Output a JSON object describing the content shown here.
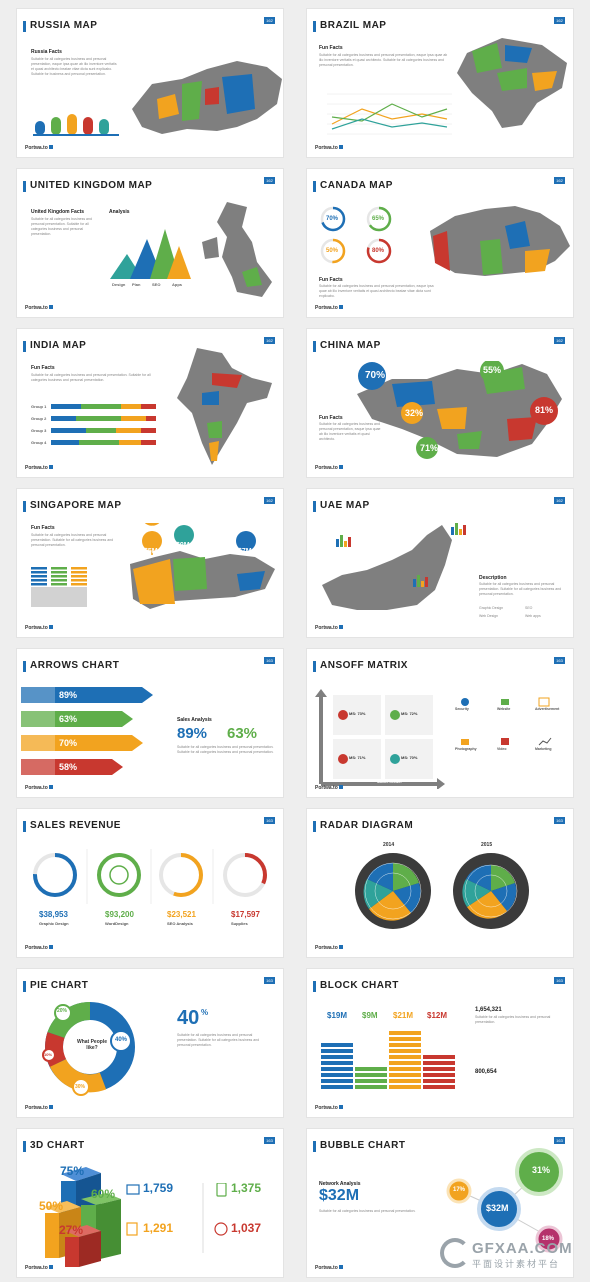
{
  "brand": "Portwa.to",
  "slides": [
    {
      "title": "RUSSIA MAP",
      "num": "162",
      "sub": "Russia Facts",
      "para": "Suitable for all categories business and personal presentation, eaque ipsa quae ab illo inventore veritatis et quasi architecto beatae vitae dicta sunt explicabo. Suitable for business and personal presentation."
    },
    {
      "title": "BRAZIL MAP",
      "num": "162",
      "sub": "Fun Facts",
      "para": "Suitable for all categories business and personal presentation, eaque ipsa quae ab illo inventore veritatis et quasi architecto. Suitable for all categories business and personal presentation."
    },
    {
      "title": "UNITED KINGDOM MAP",
      "num": "162",
      "sub": "United Kingdom Facts",
      "sub2": "Analysis",
      "para": "Suitable for all categories business and personal presentation. Suitable for all categories business and personal presentation.",
      "labels": [
        "Design",
        "Plan",
        "SEO",
        "Apps"
      ]
    },
    {
      "title": "CANADA MAP",
      "num": "162",
      "sub": "Fun Facts",
      "para": "Suitable for all categories business and personal presentation, eaque ipsa quae ab illo inventore veritatis et quasi architecto beatae vitae dicta sunt explicabo.",
      "rings": [
        "70%",
        "65%",
        "50%",
        "80%"
      ]
    },
    {
      "title": "INDIA MAP",
      "num": "162",
      "sub": "Fun Facts",
      "para": "Suitable for all categories business and personal presentation. Suitable for all categories business and personal presentation.",
      "groups": [
        "Group 1",
        "Group 2",
        "Group 3",
        "Group 4"
      ]
    },
    {
      "title": "CHINA MAP",
      "num": "162",
      "sub": "Fun Facts",
      "para": "Suitable for all categories business and personal presentation, eaque ipsa quae ab illo inventore veritatis et quasi architecto.",
      "bubbles": [
        "70%",
        "55%",
        "32%",
        "81%",
        "71%"
      ]
    },
    {
      "title": "SINGAPORE MAP",
      "num": "162",
      "sub": "Fun Facts",
      "para": "Suitable for all categories business and personal presentation. Suitable for all categories business and personal presentation.",
      "pins": [
        "$5M",
        "$9M",
        "$7M"
      ]
    },
    {
      "title": "UAE MAP",
      "num": "162",
      "sub": "Description",
      "para": "Suitable for all categories business and personal presentation. Suitable for all categories business and personal presentation.",
      "legend": [
        "Graphic Design",
        "SEO",
        "Web Design",
        "Web apps"
      ]
    },
    {
      "title": "ARROWS CHART",
      "num": "163",
      "sub": "Sales Analysis",
      "pcts": [
        "89%",
        "63%",
        "70%",
        "58%"
      ],
      "big1": "89%",
      "big2": "63%",
      "para": "Suitable for all categories business and personal presentation. Suitable for all categories business and personal presentation."
    },
    {
      "title": "ANSOFF MATRIX",
      "num": "163",
      "cells": [
        "MS: 73%",
        "MS: 72%",
        "MS: 71%",
        "MS: 70%"
      ],
      "xlabel": "Market Growth",
      "ylabel": "Market Share",
      "icons": [
        "Security",
        "Website",
        "Advertisement",
        "Photography",
        "Video",
        "Marketing"
      ]
    },
    {
      "title": "SALES REVENUE",
      "num": "163",
      "values": [
        "$38,953",
        "$93,200",
        "$23,521",
        "$17,597"
      ],
      "names": [
        "Graphic Design",
        "WordDesign",
        "SEO Analysis",
        "Supplies"
      ]
    },
    {
      "title": "RADAR DIAGRAM",
      "num": "163",
      "years": [
        "2014",
        "2015"
      ]
    },
    {
      "title": "PIE CHART",
      "num": "163",
      "center": "What People like?",
      "pct": "40",
      "pcts": [
        "20%",
        "40%",
        "10%",
        "30%"
      ],
      "para": "Suitable for all categories business and personal presentation. Suitable for all categories business and personal presentation."
    },
    {
      "title": "BLOCK CHART",
      "num": "163",
      "values": [
        "$19M",
        "$9M",
        "$21M",
        "$12M"
      ],
      "n1": "1,654,321",
      "n2": "800,654",
      "para": "Suitable for all categories business and personal presentation."
    },
    {
      "title": "3D CHART",
      "num": "163",
      "pcts": [
        "75%",
        "60%",
        "50%",
        "27%"
      ],
      "nums": [
        "1,759",
        "1,375",
        "1,291",
        "1,037"
      ]
    },
    {
      "title": "BUBBLE CHART",
      "num": "163",
      "sub": "Network Analysis",
      "big": "$32M",
      "bubbles": [
        "31%",
        "17%",
        "$32M",
        "18%"
      ],
      "para": "Suitable for all categories business and personal presentation."
    }
  ],
  "watermark": {
    "text": "GFXAA.COM",
    "sub": "平面设计素材平台"
  },
  "colors": {
    "blue": "#1e6fb5",
    "green": "#5fae4a",
    "orange": "#f2a31f",
    "red": "#c8382f",
    "teal": "#2fa29a",
    "gray": "#7f7f7f"
  }
}
